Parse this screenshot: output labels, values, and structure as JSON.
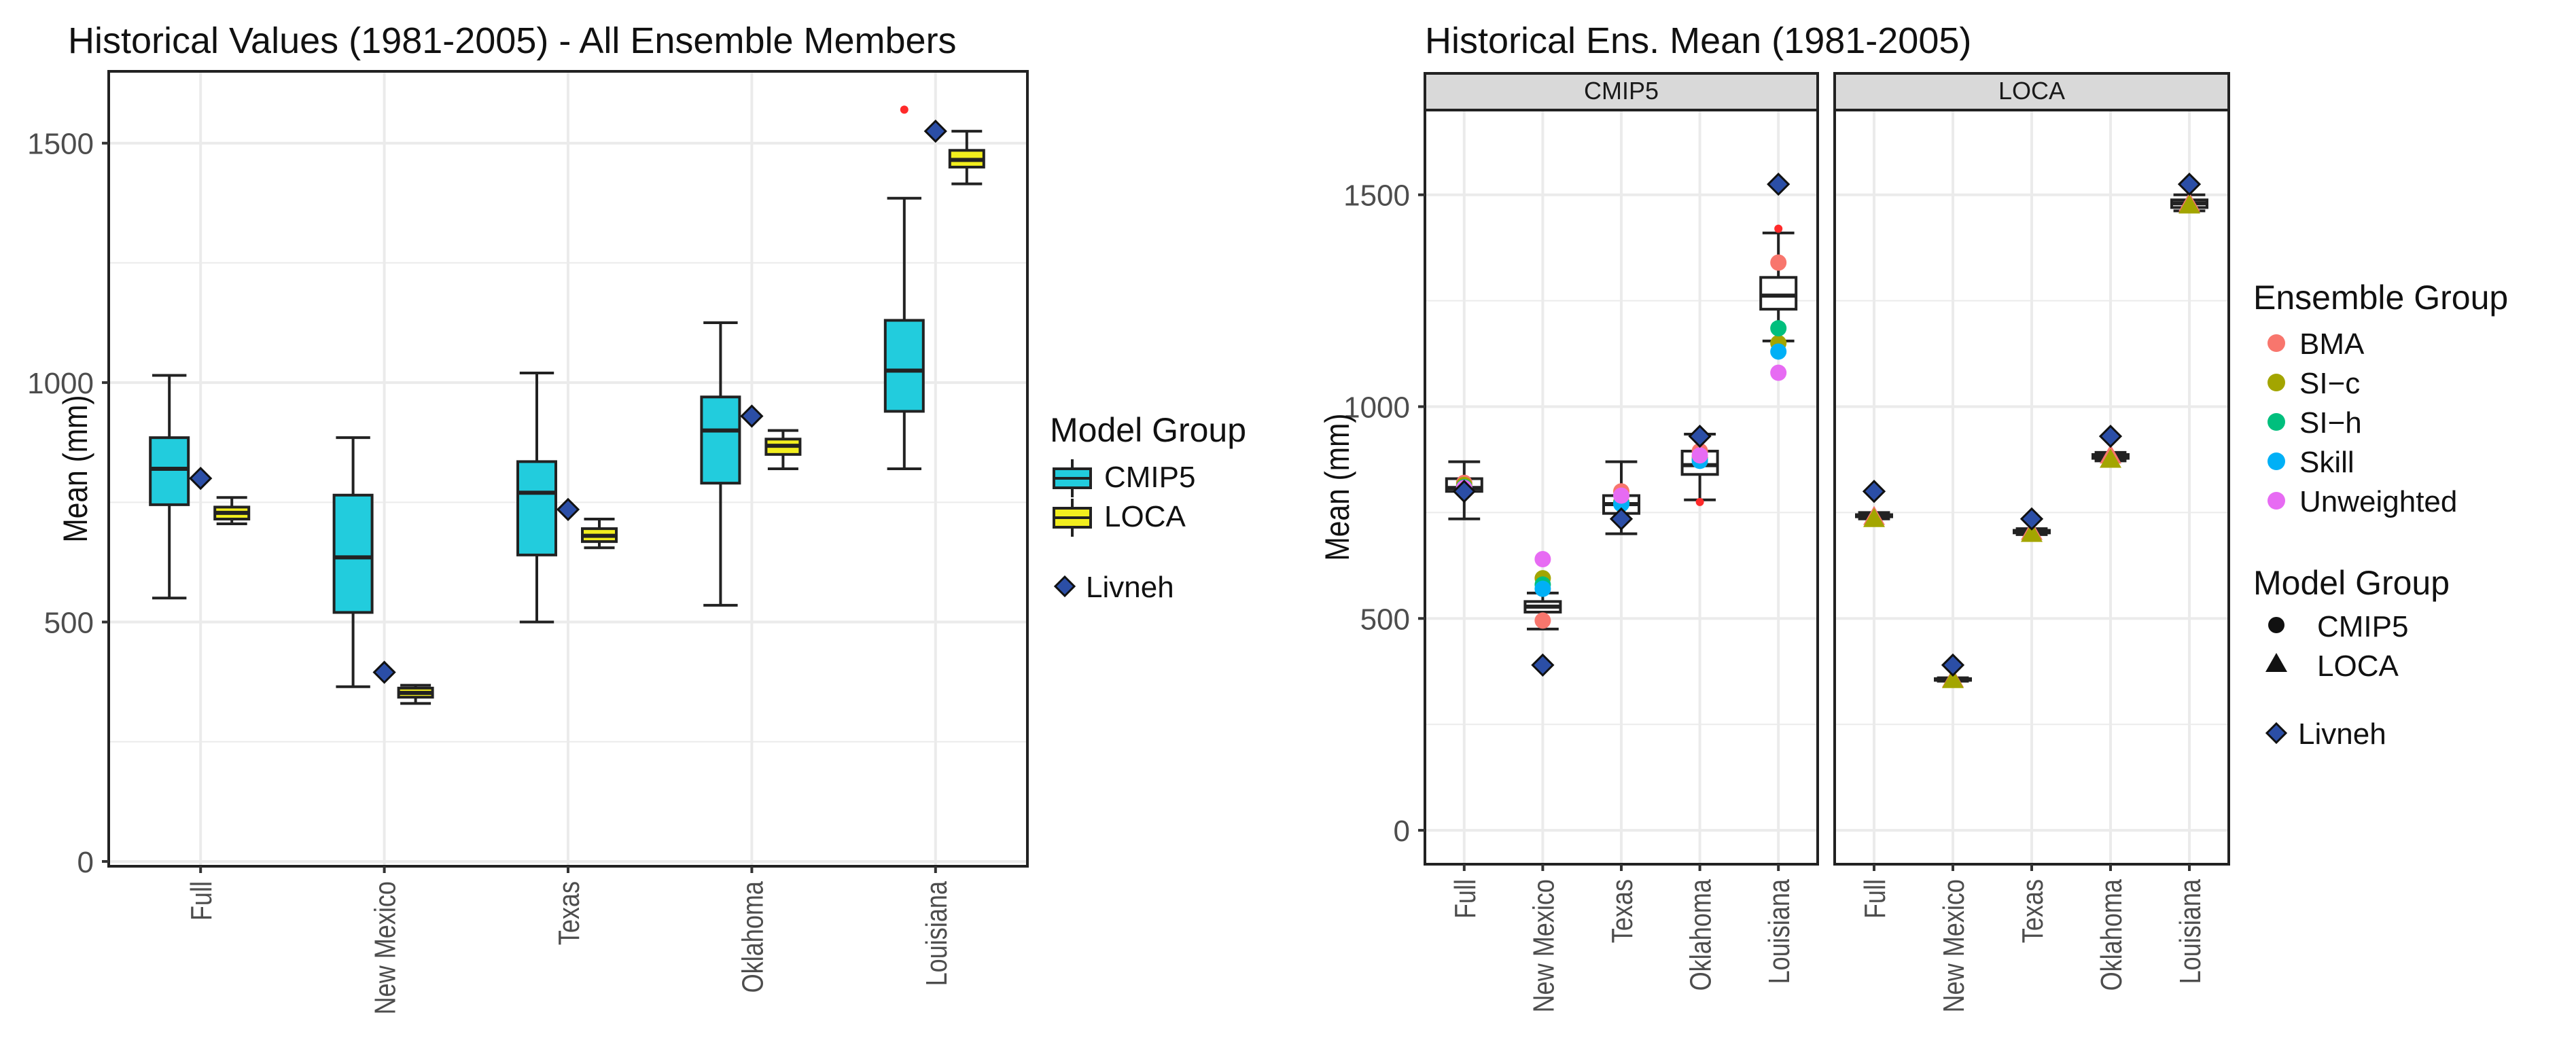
{
  "colors": {
    "cmip5": "#22ccdd",
    "loca": "#f2ee1e",
    "livneh": "#2b4ea6",
    "outlier": "#ff2a2a",
    "BMA": "#f8766d",
    "SI-c": "#a3a500",
    "SI-h": "#00bf7d",
    "Skill": "#00b0f6",
    "Unweighted": "#e76bf3",
    "grid": "#ebebeb",
    "strip": "#d9d9d9"
  },
  "chart_data": [
    {
      "type": "box",
      "title": "Historical Values (1981-2005) - All Ensemble Members",
      "ylabel": "Mean (mm)",
      "xlabel": "",
      "ylim": [
        -10,
        1650
      ],
      "yticks": [
        0,
        500,
        1000,
        1500
      ],
      "ytick_labels": [
        "0",
        "500",
        "1000",
        "1500"
      ],
      "categories": [
        "Full",
        "New Mexico",
        "Texas",
        "Oklahoma",
        "Louisiana"
      ],
      "series": [
        {
          "name": "CMIP5",
          "boxes": [
            {
              "min": 550,
              "q1": 745,
              "median": 820,
              "q3": 885,
              "max": 1015
            },
            {
              "min": 365,
              "q1": 520,
              "median": 635,
              "q3": 765,
              "max": 885
            },
            {
              "min": 500,
              "q1": 640,
              "median": 770,
              "q3": 835,
              "max": 1020
            },
            {
              "min": 535,
              "q1": 790,
              "median": 900,
              "q3": 970,
              "max": 1125
            },
            {
              "min": 820,
              "q1": 940,
              "median": 1025,
              "q3": 1130,
              "max": 1385
            }
          ]
        },
        {
          "name": "LOCA",
          "boxes": [
            {
              "min": 705,
              "q1": 715,
              "median": 728,
              "q3": 740,
              "max": 760
            },
            {
              "min": 330,
              "q1": 343,
              "median": 352,
              "q3": 362,
              "max": 368
            },
            {
              "min": 655,
              "q1": 668,
              "median": 680,
              "q3": 695,
              "max": 715
            },
            {
              "min": 820,
              "q1": 850,
              "median": 868,
              "q3": 882,
              "max": 900
            },
            {
              "min": 1415,
              "q1": 1450,
              "median": 1465,
              "q3": 1485,
              "max": 1525
            }
          ]
        }
      ],
      "outliers": [
        {
          "category": "Louisiana",
          "series": "CMIP5",
          "value": 1570
        }
      ],
      "livneh": [
        800,
        395,
        735,
        930,
        1525
      ],
      "legend": {
        "title": "Model Group",
        "entries": [
          "CMIP5",
          "LOCA"
        ],
        "livneh_label": "Livneh",
        "position": "right"
      }
    },
    {
      "type": "scatter",
      "title": "Historical Ens. Mean (1981-2005)",
      "ylabel": "Mean (mm)",
      "xlabel": "",
      "ylim": [
        -80,
        1700
      ],
      "yticks": [
        0,
        500,
        1000,
        1500
      ],
      "ytick_labels": [
        "0",
        "500",
        "1000",
        "1500"
      ],
      "categories": [
        "Full",
        "New Mexico",
        "Texas",
        "Oklahoma",
        "Louisiana"
      ],
      "facets": [
        {
          "label": "CMIP5",
          "marker": "circle",
          "boxes": [
            {
              "min": 735,
              "q1": 800,
              "median": 808,
              "q3": 830,
              "max": 870
            },
            {
              "min": 475,
              "q1": 515,
              "median": 528,
              "q3": 540,
              "max": 560
            },
            {
              "min": 700,
              "q1": 748,
              "median": 770,
              "q3": 790,
              "max": 870
            },
            {
              "min": 780,
              "q1": 840,
              "median": 862,
              "q3": 895,
              "max": 935
            },
            {
              "min": 1155,
              "q1": 1230,
              "median": 1262,
              "q3": 1305,
              "max": 1410
            }
          ],
          "points": [
            {
              "group": "BMA",
              "values": [
                820,
                495,
                800,
                895,
                1340
              ]
            },
            {
              "group": "SI-c",
              "values": [
                815,
                595,
                775,
                880,
                1150
              ]
            },
            {
              "group": "SI-h",
              "values": [
                810,
                580,
                772,
                875,
                1185
              ]
            },
            {
              "group": "Skill",
              "values": [
                805,
                570,
                770,
                872,
                1130
              ]
            },
            {
              "group": "Unweighted",
              "values": [
                808,
                640,
                790,
                885,
                1080
              ]
            }
          ],
          "outliers": [
            {
              "category": "Oklahoma",
              "value": 775
            },
            {
              "category": "Louisiana",
              "value": 1420
            }
          ],
          "livneh": [
            800,
            390,
            735,
            930,
            1525
          ]
        },
        {
          "label": "LOCA",
          "marker": "triangle",
          "boxes": [
            {
              "min": 735,
              "q1": 740,
              "median": 742,
              "q3": 745,
              "max": 750
            },
            {
              "min": 352,
              "q1": 354,
              "median": 356,
              "q3": 358,
              "max": 360
            },
            {
              "min": 698,
              "q1": 702,
              "median": 705,
              "q3": 708,
              "max": 712
            },
            {
              "min": 872,
              "q1": 878,
              "median": 882,
              "q3": 887,
              "max": 892
            },
            {
              "min": 1462,
              "q1": 1470,
              "median": 1480,
              "q3": 1488,
              "max": 1500
            }
          ],
          "points": [
            {
              "group": "BMA",
              "values": [
                740,
                357,
                705,
                885,
                1480
              ]
            },
            {
              "group": "SI-c",
              "values": [
                735,
                355,
                700,
                875,
                1475
              ]
            }
          ],
          "outliers": [],
          "livneh": [
            800,
            390,
            735,
            930,
            1525
          ]
        }
      ],
      "legend": {
        "ensemble_title": "Ensemble Group",
        "ensemble_entries": [
          "BMA",
          "SI−c",
          "SI−h",
          "Skill",
          "Unweighted"
        ],
        "model_title": "Model Group",
        "model_entries": [
          "CMIP5",
          "LOCA"
        ],
        "livneh_label": "Livneh",
        "position": "right"
      }
    }
  ]
}
